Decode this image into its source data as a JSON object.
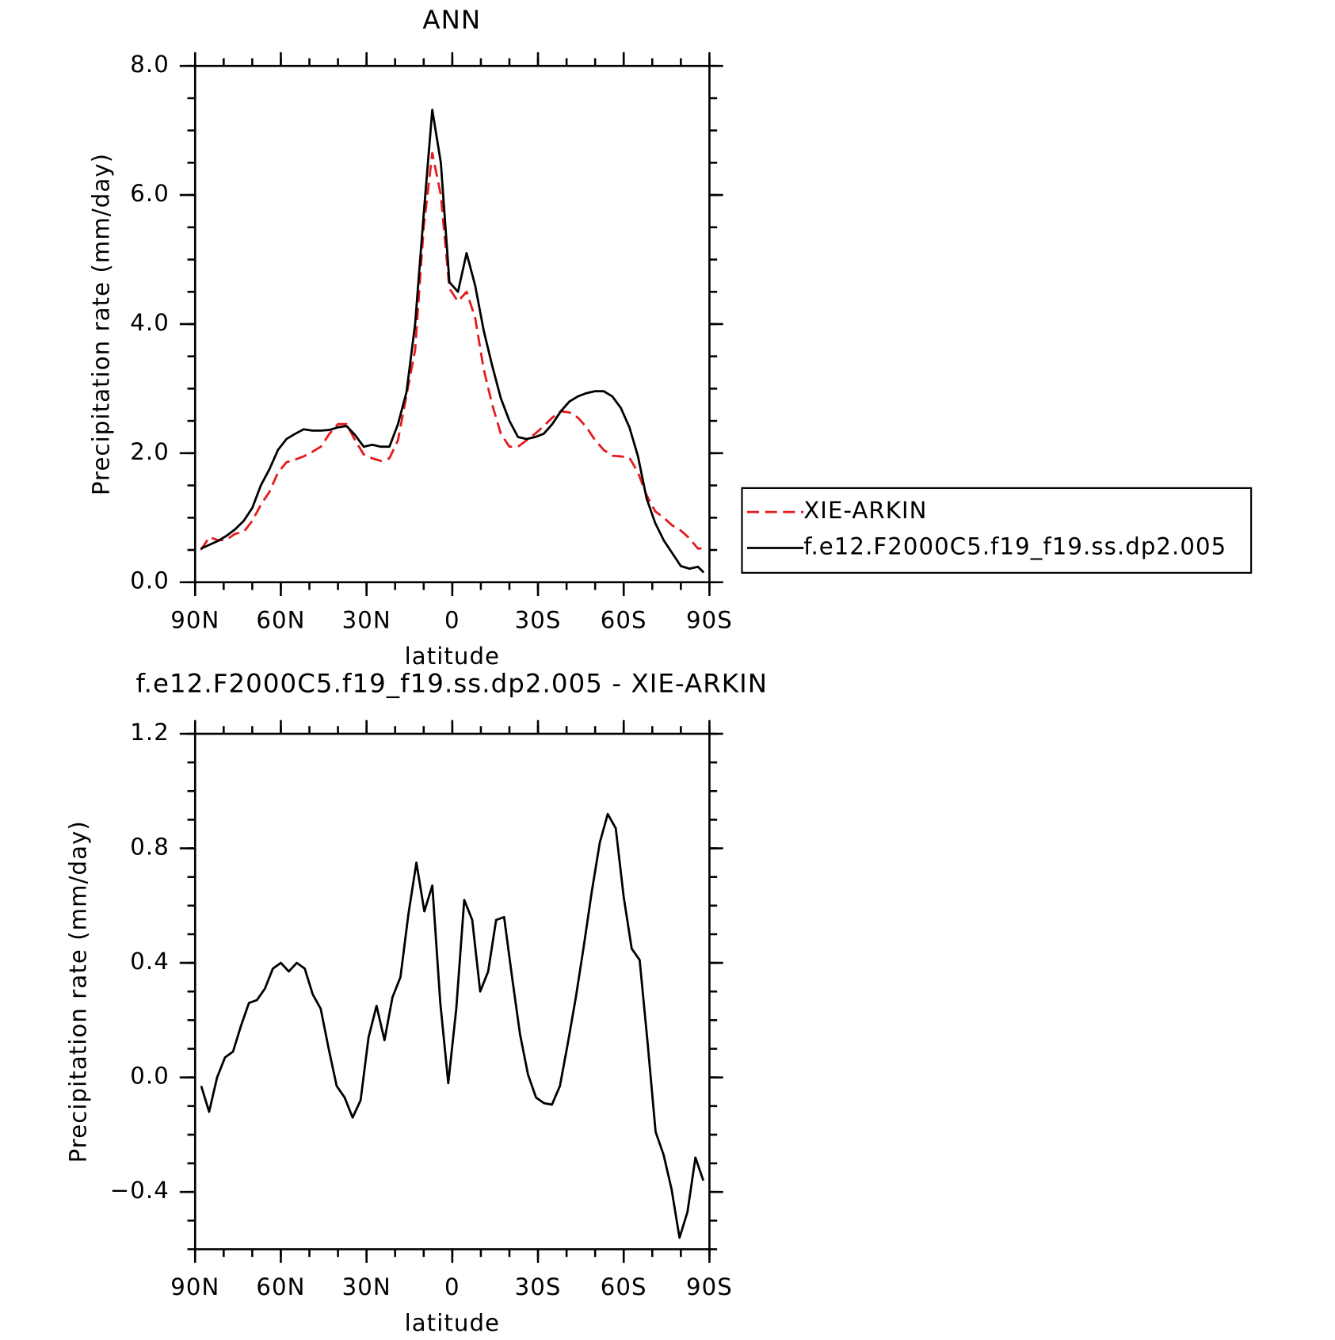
{
  "chart_data": [
    {
      "type": "line",
      "title": "ANN",
      "x_label": "latitude",
      "y_label": "Precipitation rate (mm/day)",
      "x": [
        88,
        85,
        82,
        79,
        76,
        73,
        70,
        67,
        64,
        61,
        58,
        55,
        52,
        49,
        46,
        43,
        40,
        37,
        34,
        31,
        28,
        25,
        22,
        19,
        16,
        13,
        10,
        7,
        4,
        1,
        -2,
        -5,
        -8,
        -11,
        -14,
        -17,
        -20,
        -23,
        -26,
        -29,
        -32,
        -35,
        -38,
        -41,
        -44,
        -47,
        -50,
        -53,
        -56,
        -59,
        -62,
        -65,
        -68,
        -71,
        -74,
        -77,
        -80,
        -83,
        -86,
        -88
      ],
      "series": [
        {
          "name": "XIE-ARKIN",
          "color": "#e41a1c",
          "style": "dashed",
          "values": [
            0.5,
            0.7,
            0.65,
            0.66,
            0.75,
            0.78,
            0.95,
            1.2,
            1.4,
            1.7,
            1.86,
            1.9,
            1.95,
            2.02,
            2.1,
            2.3,
            2.45,
            2.45,
            2.2,
            1.98,
            1.92,
            1.88,
            1.92,
            2.2,
            2.9,
            3.6,
            5.5,
            6.65,
            6.0,
            4.55,
            4.35,
            4.5,
            4.1,
            3.3,
            2.75,
            2.3,
            2.1,
            2.1,
            2.2,
            2.3,
            2.42,
            2.55,
            2.65,
            2.63,
            2.55,
            2.4,
            2.2,
            2.05,
            1.96,
            1.95,
            1.93,
            1.7,
            1.35,
            1.1,
            1.0,
            0.88,
            0.8,
            0.68,
            0.52,
            0.53
          ]
        },
        {
          "name": "f.e12.F2000C5.f19_f19.ss.dp2.005",
          "color": "#000000",
          "style": "solid",
          "values": [
            0.52,
            0.58,
            0.64,
            0.72,
            0.82,
            0.95,
            1.15,
            1.5,
            1.75,
            2.05,
            2.22,
            2.3,
            2.37,
            2.35,
            2.35,
            2.36,
            2.4,
            2.42,
            2.28,
            2.1,
            2.13,
            2.1,
            2.1,
            2.45,
            2.95,
            4.0,
            5.7,
            7.32,
            6.5,
            4.65,
            4.5,
            5.1,
            4.6,
            3.9,
            3.35,
            2.85,
            2.5,
            2.25,
            2.22,
            2.25,
            2.3,
            2.45,
            2.65,
            2.8,
            2.88,
            2.93,
            2.96,
            2.96,
            2.88,
            2.7,
            2.4,
            1.95,
            1.3,
            0.92,
            0.65,
            0.45,
            0.25,
            0.21,
            0.24,
            0.15
          ]
        }
      ],
      "xlim": [
        90,
        -90
      ],
      "xticks": [
        {
          "value": 90,
          "label": "90N"
        },
        {
          "value": 60,
          "label": "60N"
        },
        {
          "value": 30,
          "label": "30N"
        },
        0,
        {
          "value": -30,
          "label": "30S"
        },
        {
          "value": -60,
          "label": "60S"
        },
        {
          "value": -90,
          "label": "90S"
        }
      ],
      "ylim": [
        0,
        8
      ],
      "yticks": [
        {
          "value": 0,
          "label": "0.0"
        },
        {
          "value": 2,
          "label": "2.0"
        },
        {
          "value": 4,
          "label": "4.0"
        },
        {
          "value": 6,
          "label": "6.0"
        },
        {
          "value": 8,
          "label": "8.0"
        }
      ],
      "legend": "outside right"
    },
    {
      "type": "line",
      "title": "f.e12.F2000C5.f19_f19.ss.dp2.005 - XIE-ARKIN",
      "x_label": "latitude",
      "y_label": "Precipitation rate (mm/day)",
      "x": [
        87.86,
        85.1,
        82.31,
        79.53,
        76.74,
        73.95,
        71.16,
        68.37,
        65.58,
        62.79,
        60.0,
        57.21,
        54.42,
        51.63,
        48.84,
        46.05,
        43.25,
        40.46,
        37.67,
        34.88,
        32.09,
        29.3,
        26.51,
        23.72,
        20.93,
        18.14,
        15.35,
        12.56,
        9.77,
        6.98,
        4.19,
        1.4,
        -1.4,
        -4.19,
        -6.98,
        -9.77,
        -12.56,
        -15.35,
        -18.14,
        -20.93,
        -23.72,
        -26.51,
        -29.3,
        -32.09,
        -34.88,
        -37.67,
        -40.46,
        -43.25,
        -46.05,
        -48.84,
        -51.63,
        -54.42,
        -57.21,
        -60.0,
        -62.79,
        -65.58,
        -68.37,
        -71.16,
        -73.95,
        -76.74,
        -79.53,
        -82.31,
        -85.1,
        -87.86
      ],
      "values": [
        -0.03,
        -0.12,
        0.0,
        0.07,
        0.09,
        0.18,
        0.26,
        0.27,
        0.31,
        0.38,
        0.4,
        0.37,
        0.4,
        0.38,
        0.29,
        0.24,
        0.1,
        -0.03,
        -0.07,
        -0.14,
        -0.08,
        0.14,
        0.25,
        0.13,
        0.28,
        0.35,
        0.57,
        0.75,
        0.58,
        0.67,
        0.26,
        -0.02,
        0.24,
        0.62,
        0.55,
        0.3,
        0.37,
        0.55,
        0.56,
        0.35,
        0.15,
        0.01,
        -0.07,
        -0.09,
        -0.095,
        -0.03,
        0.12,
        0.28,
        0.46,
        0.65,
        0.82,
        0.92,
        0.87,
        0.63,
        0.45,
        0.41,
        0.12,
        -0.19,
        -0.27,
        -0.39,
        -0.56,
        -0.47,
        -0.28,
        -0.36
      ],
      "color": "#000000",
      "xlim": [
        90,
        -90
      ],
      "xticks": [
        {
          "value": 90,
          "label": "90N"
        },
        {
          "value": 60,
          "label": "60N"
        },
        {
          "value": 30,
          "label": "30N"
        },
        0,
        {
          "value": -30,
          "label": "30S"
        },
        {
          "value": -60,
          "label": "60S"
        },
        {
          "value": -90,
          "label": "90S"
        }
      ],
      "ylim": [
        -0.6,
        1.2
      ],
      "yticks": [
        {
          "value": -0.4,
          "label": "−0.4"
        },
        {
          "value": 0,
          "label": "0.0"
        },
        {
          "value": 0.4,
          "label": "0.4"
        },
        {
          "value": 0.8,
          "label": "0.8"
        },
        {
          "value": 1.2,
          "label": "1.2"
        }
      ]
    }
  ]
}
